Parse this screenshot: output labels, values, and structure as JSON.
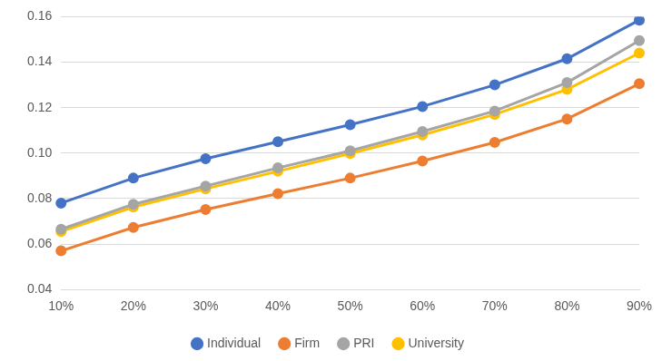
{
  "chart_data": {
    "type": "line",
    "categories": [
      "10%",
      "20%",
      "30%",
      "40%",
      "50%",
      "60%",
      "70%",
      "80%",
      "90%"
    ],
    "series": [
      {
        "name": "Individual",
        "color": "#4472c4",
        "values": [
          0.078,
          0.089,
          0.0975,
          0.105,
          0.1125,
          0.1205,
          0.13,
          0.1415,
          0.1585
        ]
      },
      {
        "name": "Firm",
        "color": "#ed7d31",
        "values": [
          0.057,
          0.0673,
          0.0752,
          0.0822,
          0.089,
          0.0965,
          0.1047,
          0.115,
          0.1305
        ]
      },
      {
        "name": "PRI",
        "color": "#a5a5a5",
        "values": [
          0.0665,
          0.0775,
          0.0855,
          0.0935,
          0.101,
          0.1095,
          0.1185,
          0.131,
          0.1495
        ]
      },
      {
        "name": "University",
        "color": "#ffc000",
        "values": [
          0.0655,
          0.0763,
          0.0843,
          0.092,
          0.0998,
          0.108,
          0.117,
          0.128,
          0.144
        ]
      }
    ],
    "ylim": [
      0.04,
      0.16
    ],
    "yticks": [
      0.04,
      0.06,
      0.08,
      {
        "value": 0.1,
        "label": "0.10"
      },
      0.12,
      0.14,
      0.16
    ],
    "grid": true,
    "legend": "bottom",
    "marker": "circle"
  }
}
